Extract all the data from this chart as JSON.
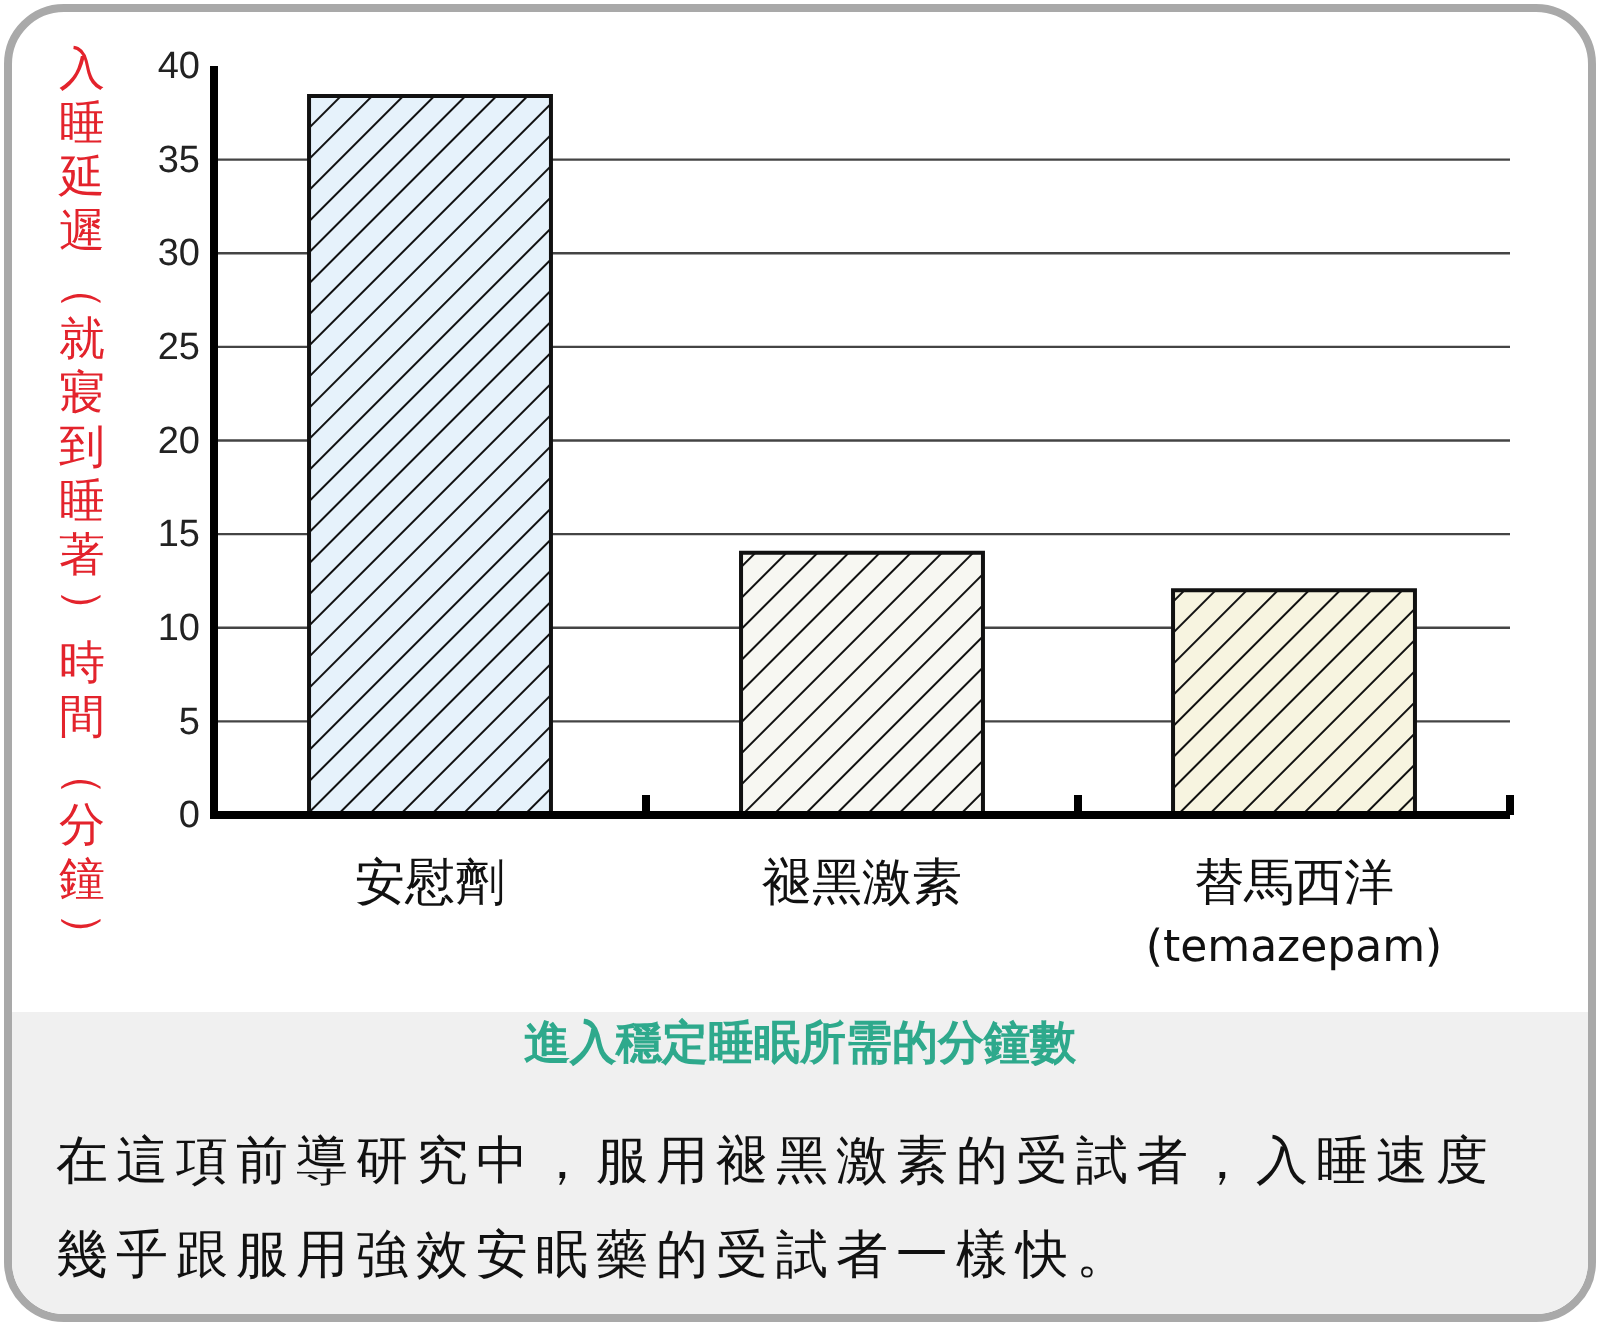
{
  "chart_data": {
    "type": "bar",
    "title": "進入穩定睡眠所需的分鐘數",
    "ylabel": "入睡延遲（就寢到睡著）時間（分鐘）",
    "categories": [
      "安慰劑",
      "褪黑激素",
      "替馬西洋\n(temazepam)"
    ],
    "values": [
      38.4,
      14,
      12
    ],
    "colors": [
      "#e6f2fb",
      "#f7f7f2",
      "#f7f4e0"
    ],
    "ylim": [
      0,
      40
    ],
    "yticks": [
      0,
      5,
      10,
      15,
      20,
      25,
      30,
      35,
      40
    ],
    "grid": "y",
    "annotations": [
      "在這項前導研究中，服用褪黑激素的受試者，入睡速度幾乎跟服用強效安眠藥的受試者一樣快。"
    ]
  }
}
